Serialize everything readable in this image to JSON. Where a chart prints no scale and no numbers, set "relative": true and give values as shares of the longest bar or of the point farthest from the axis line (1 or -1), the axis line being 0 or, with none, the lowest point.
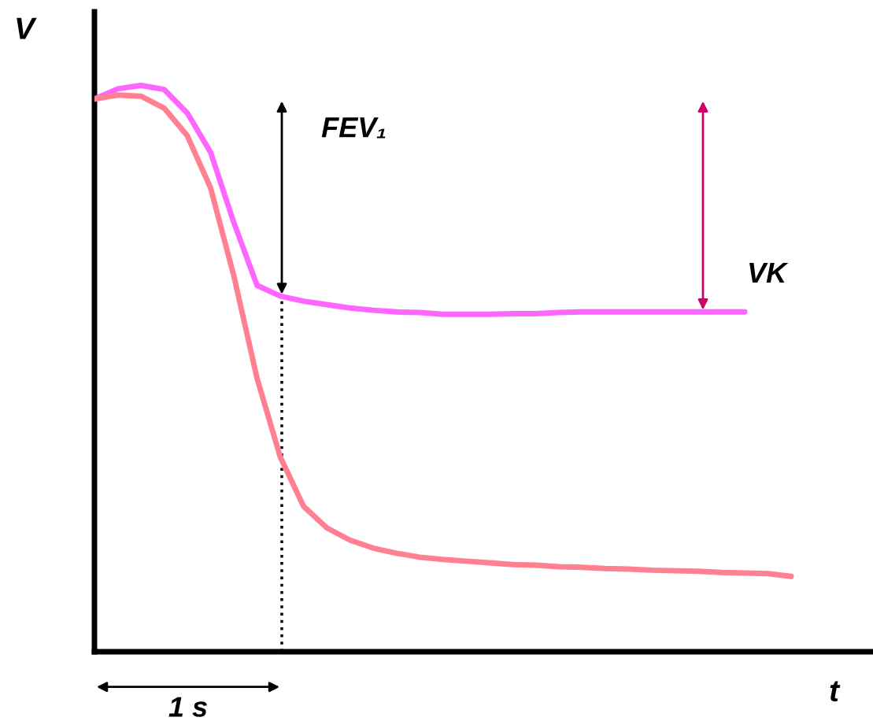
{
  "chart_data": {
    "type": "line",
    "relative": true,
    "xlabel": "t",
    "ylabel": "V",
    "marker": "none",
    "line_style": "solid",
    "categories": [
      null,
      null,
      null,
      null,
      null,
      null,
      null,
      null,
      null,
      null,
      null,
      null,
      null,
      null,
      null,
      null,
      null,
      null,
      null,
      null,
      null,
      null,
      null,
      null,
      null,
      null,
      null,
      null,
      null,
      null,
      null
    ],
    "series": [
      {
        "color": "#ff66ff",
        "values": [
          0.976,
          0.994,
          1.0,
          0.993,
          0.951,
          0.882,
          0.758,
          0.647,
          0.628,
          0.619,
          0.613,
          0.607,
          0.603,
          0.6,
          0.599,
          0.596,
          0.596,
          0.596,
          0.597,
          0.597,
          0.599,
          0.6,
          0.6,
          0.6,
          0.6,
          0.6,
          0.6,
          0.6,
          0.6,
          null,
          null
        ]
      },
      {
        "color": "#ff8090",
        "values": [
          0.976,
          0.983,
          0.981,
          0.96,
          0.911,
          0.819,
          0.664,
          0.483,
          0.344,
          0.257,
          0.219,
          0.197,
          0.183,
          0.174,
          0.167,
          0.163,
          0.16,
          0.157,
          0.154,
          0.153,
          0.15,
          0.149,
          0.147,
          0.146,
          0.144,
          0.143,
          0.142,
          0.14,
          0.139,
          0.138,
          0.133
        ]
      }
    ],
    "annotations": [
      "FEV₁",
      "VK",
      "1 s"
    ]
  }
}
